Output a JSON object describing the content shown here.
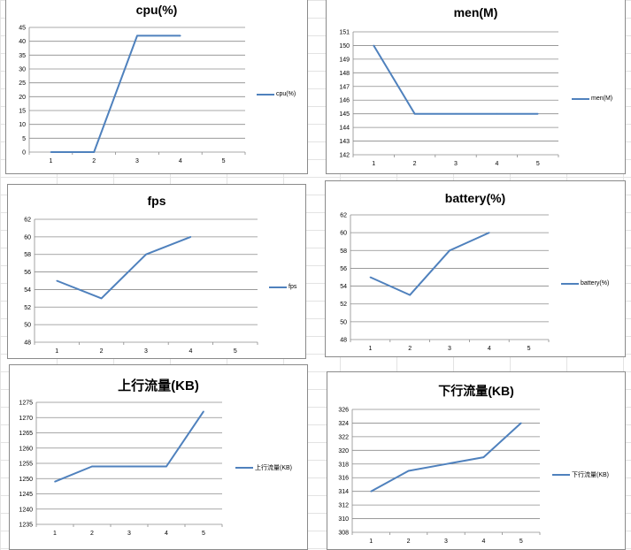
{
  "colors": {
    "series": "#4f81bd",
    "grid": "#8c8c8c",
    "axis": "#8c8c8c"
  },
  "chart_data": [
    {
      "type": "line",
      "title": "cpu(%)",
      "categories": [
        "1",
        "2",
        "3",
        "4",
        "5"
      ],
      "series": [
        {
          "name": "cpu(%)",
          "values": [
            0,
            0,
            42,
            42,
            null
          ]
        }
      ],
      "ylim": [
        0,
        45
      ],
      "ystep": 5,
      "yticks": [
        "0",
        "5",
        "10",
        "15",
        "20",
        "25",
        "30",
        "35",
        "40",
        "45"
      ],
      "grid": true,
      "legend": "right"
    },
    {
      "type": "line",
      "title": "men(M)",
      "categories": [
        "1",
        "2",
        "3",
        "4",
        "5"
      ],
      "series": [
        {
          "name": "men(M)",
          "values": [
            150,
            145,
            145,
            145,
            145
          ]
        }
      ],
      "ylim": [
        142,
        151
      ],
      "ystep": 1,
      "yticks": [
        "142",
        "143",
        "144",
        "145",
        "146",
        "147",
        "148",
        "149",
        "150",
        "151"
      ],
      "grid": true,
      "legend": "right"
    },
    {
      "type": "line",
      "title": "fps",
      "categories": [
        "1",
        "2",
        "3",
        "4",
        "5"
      ],
      "series": [
        {
          "name": "fps",
          "values": [
            55,
            53,
            58,
            60,
            null
          ]
        }
      ],
      "ylim": [
        48,
        62
      ],
      "ystep": 2,
      "yticks": [
        "48",
        "50",
        "52",
        "54",
        "56",
        "58",
        "60",
        "62"
      ],
      "grid": true,
      "legend": "right"
    },
    {
      "type": "line",
      "title": "battery(%)",
      "categories": [
        "1",
        "2",
        "3",
        "4",
        "5"
      ],
      "series": [
        {
          "name": "battery(%)",
          "values": [
            55,
            53,
            58,
            60,
            null
          ]
        }
      ],
      "ylim": [
        48,
        62
      ],
      "ystep": 2,
      "yticks": [
        "48",
        "50",
        "52",
        "54",
        "56",
        "58",
        "60",
        "62"
      ],
      "grid": true,
      "legend": "right"
    },
    {
      "type": "line",
      "title": "上行流量(KB)",
      "categories": [
        "1",
        "2",
        "3",
        "4",
        "5"
      ],
      "series": [
        {
          "name": "上行流量(KB)",
          "values": [
            1249,
            1254,
            1254,
            1254,
            1272
          ]
        }
      ],
      "ylim": [
        1235,
        1275
      ],
      "ystep": 5,
      "yticks": [
        "1235",
        "1240",
        "1245",
        "1250",
        "1255",
        "1260",
        "1265",
        "1270",
        "1275"
      ],
      "grid": true,
      "legend": "right"
    },
    {
      "type": "line",
      "title": "下行流量(KB)",
      "categories": [
        "1",
        "2",
        "3",
        "4",
        "5"
      ],
      "series": [
        {
          "name": "下行流量(KB)",
          "values": [
            314,
            317,
            318,
            319,
            324
          ]
        }
      ],
      "ylim": [
        308,
        326
      ],
      "ystep": 2,
      "yticks": [
        "308",
        "310",
        "312",
        "314",
        "316",
        "318",
        "320",
        "322",
        "324",
        "326"
      ],
      "grid": true,
      "legend": "right"
    }
  ]
}
